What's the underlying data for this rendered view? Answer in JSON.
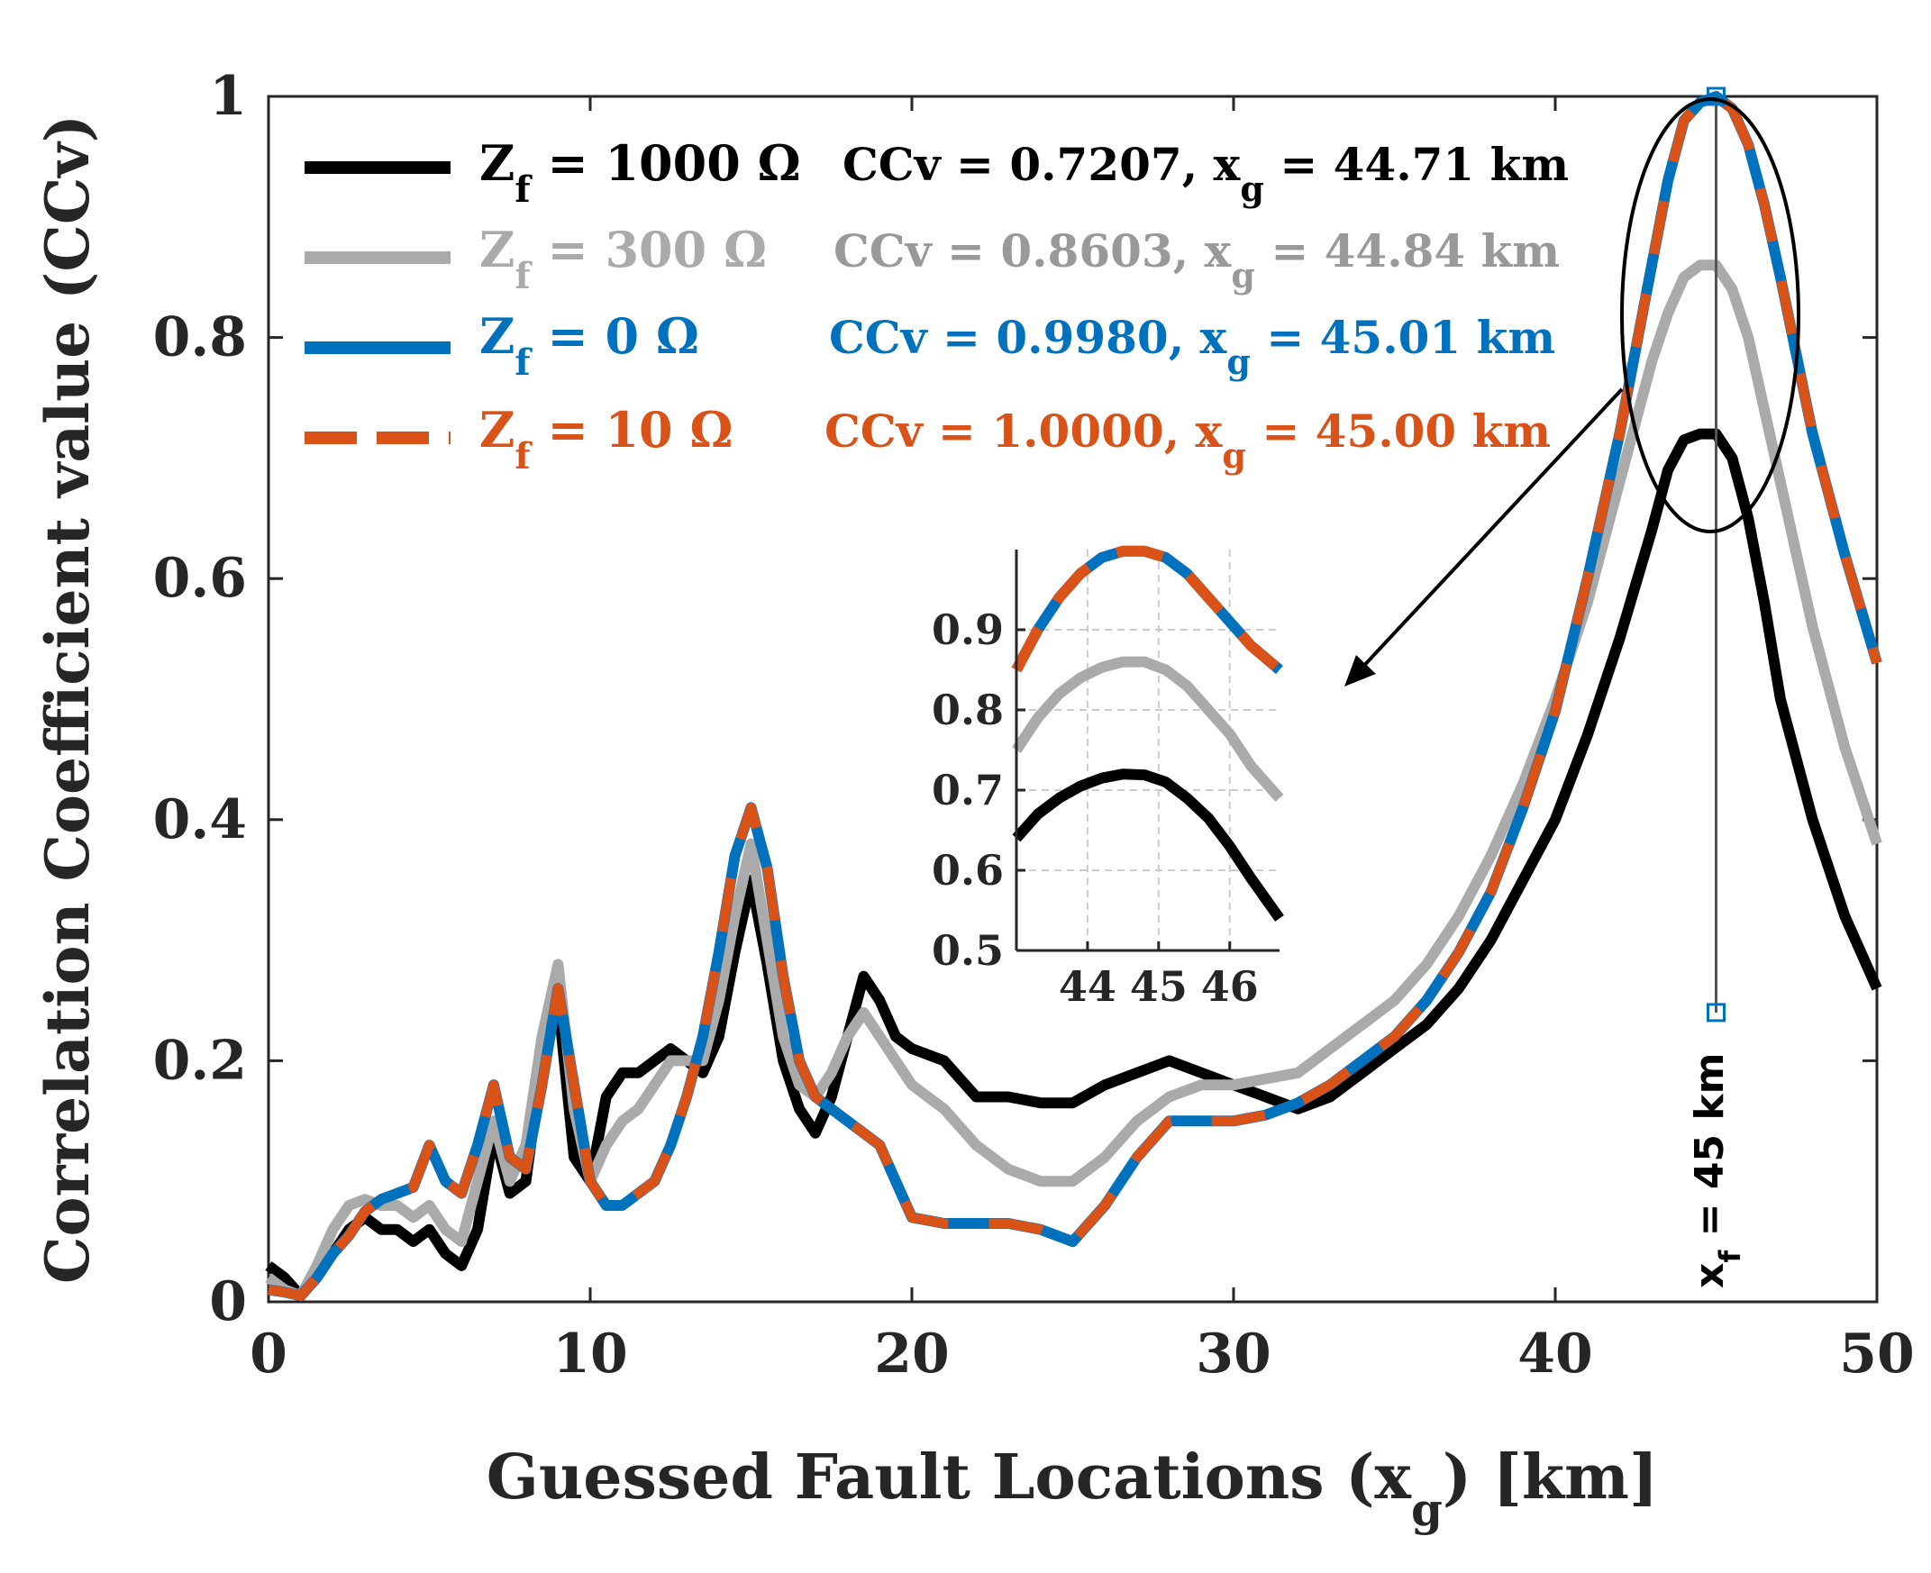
{
  "chart_data": {
    "type": "line",
    "xlabel": "Guessed Fault Locations (x",
    "xlabel_sub": "g",
    "xlabel_tail": ") [km]",
    "ylabel": "Correlation Coefficient value (CCv)",
    "xlim": [
      0,
      50
    ],
    "ylim": [
      0,
      1
    ],
    "xticks": [
      0,
      10,
      20,
      30,
      40,
      50
    ],
    "yticks": [
      0,
      0.2,
      0.4,
      0.6,
      0.8,
      1
    ],
    "xtick_labels": [
      "0",
      "10",
      "20",
      "30",
      "40",
      "50"
    ],
    "ytick_labels": [
      "0",
      "0.2",
      "0.4",
      "0.6",
      "0.8",
      "1"
    ],
    "grid": false,
    "legend_position": "top-left",
    "fault_marker": {
      "x": 45,
      "y_top": 1.0,
      "y_bottom": 0.24,
      "label_pre": "x",
      "label_sub": "f",
      "label_post": " = 45 km"
    },
    "x": [
      0,
      0.5,
      1,
      1.5,
      2,
      2.5,
      3,
      3.5,
      4,
      4.5,
      5,
      5.5,
      6,
      6.5,
      7,
      7.5,
      8,
      8.5,
      9,
      9.5,
      10,
      10.5,
      11,
      11.5,
      12,
      12.5,
      13,
      13.5,
      14,
      14.5,
      15,
      15.5,
      16,
      16.5,
      17,
      17.5,
      18,
      18.5,
      19,
      19.5,
      20,
      21,
      22,
      23,
      24,
      25,
      26,
      27,
      28,
      29,
      30,
      31,
      32,
      33,
      34,
      35,
      36,
      37,
      38,
      39,
      40,
      41,
      42,
      43,
      43.5,
      44,
      44.5,
      45,
      45.5,
      46,
      46.5,
      47,
      48,
      49,
      50
    ],
    "series": [
      {
        "name": "Z_f = 1000 Ω",
        "color": "#000000",
        "dash": "solid",
        "ccv": "0.7207",
        "xg": "44.71",
        "values": [
          0.03,
          0.02,
          0.005,
          0.02,
          0.04,
          0.06,
          0.07,
          0.06,
          0.06,
          0.05,
          0.06,
          0.04,
          0.03,
          0.06,
          0.14,
          0.09,
          0.1,
          0.2,
          0.25,
          0.12,
          0.1,
          0.17,
          0.19,
          0.19,
          0.2,
          0.21,
          0.2,
          0.19,
          0.22,
          0.29,
          0.35,
          0.28,
          0.2,
          0.16,
          0.14,
          0.17,
          0.22,
          0.27,
          0.25,
          0.22,
          0.21,
          0.2,
          0.17,
          0.17,
          0.165,
          0.165,
          0.18,
          0.19,
          0.2,
          0.19,
          0.18,
          0.17,
          0.16,
          0.17,
          0.19,
          0.21,
          0.23,
          0.26,
          0.3,
          0.35,
          0.4,
          0.47,
          0.55,
          0.64,
          0.69,
          0.715,
          0.72,
          0.72,
          0.7,
          0.65,
          0.58,
          0.5,
          0.4,
          0.32,
          0.26
        ]
      },
      {
        "name": "Z_f = 300 Ω",
        "color": "#aaaaaa",
        "dash": "solid",
        "ccv": "0.8603",
        "xg": "44.84",
        "values": [
          0.02,
          0.01,
          0.005,
          0.03,
          0.06,
          0.08,
          0.085,
          0.08,
          0.08,
          0.07,
          0.08,
          0.06,
          0.05,
          0.1,
          0.15,
          0.1,
          0.13,
          0.22,
          0.28,
          0.16,
          0.1,
          0.13,
          0.15,
          0.16,
          0.18,
          0.2,
          0.2,
          0.2,
          0.25,
          0.32,
          0.38,
          0.3,
          0.22,
          0.18,
          0.17,
          0.19,
          0.22,
          0.24,
          0.22,
          0.2,
          0.18,
          0.16,
          0.13,
          0.11,
          0.1,
          0.1,
          0.12,
          0.15,
          0.17,
          0.18,
          0.18,
          0.185,
          0.19,
          0.21,
          0.23,
          0.25,
          0.28,
          0.32,
          0.37,
          0.43,
          0.5,
          0.58,
          0.68,
          0.78,
          0.82,
          0.85,
          0.86,
          0.86,
          0.84,
          0.8,
          0.74,
          0.68,
          0.56,
          0.46,
          0.38
        ]
      },
      {
        "name": "Z_f = 0 Ω",
        "color": "#0072bd",
        "dash": "solid",
        "ccv": "0.9980",
        "xg": "45.01",
        "values": [
          0.01,
          0.008,
          0.005,
          0.02,
          0.04,
          0.055,
          0.075,
          0.085,
          0.09,
          0.095,
          0.13,
          0.1,
          0.09,
          0.13,
          0.18,
          0.12,
          0.11,
          0.18,
          0.26,
          0.18,
          0.1,
          0.08,
          0.08,
          0.09,
          0.1,
          0.13,
          0.17,
          0.22,
          0.29,
          0.37,
          0.41,
          0.36,
          0.27,
          0.2,
          0.17,
          0.16,
          0.15,
          0.14,
          0.13,
          0.1,
          0.07,
          0.065,
          0.065,
          0.065,
          0.06,
          0.05,
          0.08,
          0.12,
          0.15,
          0.15,
          0.15,
          0.155,
          0.165,
          0.18,
          0.2,
          0.22,
          0.25,
          0.29,
          0.34,
          0.41,
          0.49,
          0.6,
          0.72,
          0.86,
          0.93,
          0.98,
          0.995,
          1.0,
          0.99,
          0.96,
          0.91,
          0.85,
          0.72,
          0.62,
          0.53
        ]
      },
      {
        "name": "Z_f = 10 Ω",
        "color": "#d95319",
        "dash": "dashed",
        "ccv": "1.0000",
        "xg": "45.00",
        "values": [
          0.01,
          0.008,
          0.005,
          0.02,
          0.04,
          0.055,
          0.075,
          0.085,
          0.09,
          0.095,
          0.13,
          0.1,
          0.09,
          0.13,
          0.18,
          0.12,
          0.11,
          0.18,
          0.26,
          0.18,
          0.1,
          0.08,
          0.08,
          0.09,
          0.1,
          0.13,
          0.17,
          0.22,
          0.29,
          0.37,
          0.41,
          0.36,
          0.27,
          0.2,
          0.17,
          0.16,
          0.15,
          0.14,
          0.13,
          0.1,
          0.07,
          0.065,
          0.065,
          0.065,
          0.06,
          0.05,
          0.08,
          0.12,
          0.15,
          0.15,
          0.15,
          0.155,
          0.165,
          0.18,
          0.2,
          0.22,
          0.25,
          0.29,
          0.34,
          0.41,
          0.49,
          0.6,
          0.72,
          0.86,
          0.93,
          0.98,
          0.995,
          1.0,
          0.99,
          0.96,
          0.91,
          0.85,
          0.72,
          0.62,
          0.53
        ]
      }
    ],
    "inset": {
      "xlim": [
        43,
        46.7
      ],
      "ylim": [
        0.5,
        1.0
      ],
      "xticks": [
        44,
        45,
        46
      ],
      "xtick_labels": [
        "44",
        "45",
        "46"
      ],
      "yticks": [
        0.5,
        0.6,
        0.7,
        0.8,
        0.9
      ],
      "ytick_labels": [
        "0.5",
        "0.6",
        "0.7",
        "0.8",
        "0.9"
      ],
      "grid": true,
      "x": [
        43,
        43.3,
        43.6,
        43.9,
        44.2,
        44.5,
        44.8,
        45.1,
        45.4,
        45.7,
        46,
        46.3,
        46.7
      ],
      "series": [
        {
          "name": "Z_f = 1000 Ω",
          "values": [
            0.64,
            0.67,
            0.69,
            0.705,
            0.715,
            0.72,
            0.719,
            0.71,
            0.69,
            0.665,
            0.63,
            0.59,
            0.54
          ]
        },
        {
          "name": "Z_f = 300 Ω",
          "values": [
            0.75,
            0.79,
            0.82,
            0.84,
            0.853,
            0.86,
            0.86,
            0.85,
            0.83,
            0.8,
            0.77,
            0.73,
            0.69
          ]
        },
        {
          "name": "Z_f = 0 Ω",
          "values": [
            0.85,
            0.9,
            0.94,
            0.97,
            0.99,
            0.998,
            0.998,
            0.99,
            0.97,
            0.94,
            0.91,
            0.88,
            0.85
          ]
        },
        {
          "name": "Z_f = 10 Ω",
          "values": [
            0.85,
            0.9,
            0.94,
            0.97,
            0.99,
            0.998,
            0.998,
            0.99,
            0.97,
            0.94,
            0.91,
            0.88,
            0.85
          ]
        }
      ]
    }
  },
  "legend": {
    "entries": [
      {
        "label_pre": "Z",
        "label_sub": "f",
        "label_post": " = 1000 Ω",
        "stat_pre": "CCv = 0.7207, x",
        "stat_sub": "g",
        "stat_post": " = 44.71 km",
        "color": "#000000",
        "text_color": "#000000"
      },
      {
        "label_pre": "Z",
        "label_sub": "f",
        "label_post": " = 300 Ω",
        "stat_pre": "CCv = 0.8603, x",
        "stat_sub": "g",
        "stat_post": " = 44.84 km",
        "color": "#aaaaaa",
        "text_color": "#999999"
      },
      {
        "label_pre": "Z",
        "label_sub": "f",
        "label_post": " = 0 Ω",
        "stat_pre": "CCv = 0.9980, x",
        "stat_sub": "g",
        "stat_post": " = 45.01 km",
        "color": "#0072bd",
        "text_color": "#0072bd"
      },
      {
        "label_pre": "Z",
        "label_sub": "f",
        "label_post": " = 10 Ω",
        "stat_pre": "CCv = 1.0000, x",
        "stat_sub": "g",
        "stat_post": " = 45.00 km",
        "color": "#d95319",
        "text_color": "#d95319"
      }
    ]
  }
}
